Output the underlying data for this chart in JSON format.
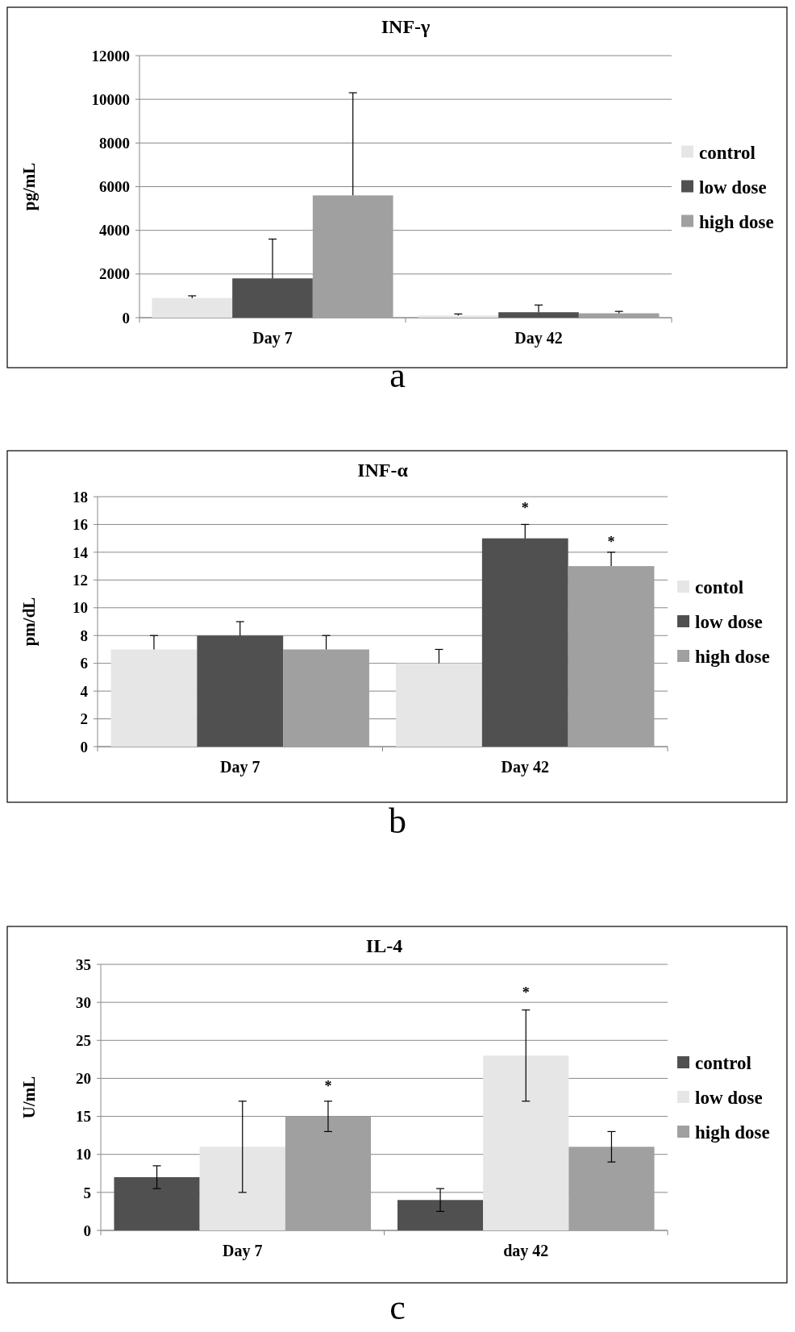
{
  "chart_data": [
    {
      "type": "bar",
      "title": "INF-γ",
      "ylabel": "pg/mL",
      "categories": [
        "Day 7",
        "Day 42"
      ],
      "ylim": [
        0,
        12000
      ],
      "yticks": [
        0,
        2000,
        4000,
        6000,
        8000,
        10000,
        12000
      ],
      "grid": "y",
      "legend": "right",
      "annotations": [
        "a"
      ],
      "series": [
        {
          "name": "control",
          "color": "#e6e6e6",
          "values": [
            900,
            100
          ],
          "errors": [
            [
              900,
              1000
            ],
            [
              100,
              170
            ]
          ]
        },
        {
          "name": "low dose",
          "color": "#505050",
          "values": [
            1800,
            250
          ],
          "errors": [
            [
              1800,
              3600
            ],
            [
              250,
              580
            ]
          ]
        },
        {
          "name": "high dose",
          "color": "#a0a0a0",
          "values": [
            5600,
            200
          ],
          "errors": [
            [
              5600,
              10300
            ],
            [
              200,
              290
            ]
          ]
        }
      ]
    },
    {
      "type": "bar",
      "title": "INF-α",
      "ylabel": "pm/dL",
      "categories": [
        "Day 7",
        "Day 42"
      ],
      "ylim": [
        0,
        18
      ],
      "yticks": [
        0,
        2,
        4,
        6,
        8,
        10,
        12,
        14,
        16,
        18
      ],
      "grid": "y",
      "legend": "right",
      "annotations": [
        "b",
        "*",
        "*"
      ],
      "series": [
        {
          "name": "contol",
          "color": "#e6e6e6",
          "values": [
            7,
            6
          ],
          "errors": [
            [
              7,
              8
            ],
            [
              6,
              7
            ]
          ]
        },
        {
          "name": "low dose",
          "color": "#505050",
          "values": [
            8,
            15
          ],
          "errors": [
            [
              8,
              9
            ],
            [
              15,
              16
            ]
          ]
        },
        {
          "name": "high dose",
          "color": "#a0a0a0",
          "values": [
            7,
            13
          ],
          "errors": [
            [
              7,
              8
            ],
            [
              13,
              14
            ]
          ]
        }
      ]
    },
    {
      "type": "bar",
      "title": "IL-4",
      "ylabel": "U/mL",
      "categories": [
        "Day 7",
        "day 42"
      ],
      "ylim": [
        0,
        35
      ],
      "yticks": [
        0,
        5,
        10,
        15,
        20,
        25,
        30,
        35
      ],
      "grid": "y",
      "legend": "right",
      "annotations": [
        "c",
        "*",
        "*"
      ],
      "series": [
        {
          "name": "control",
          "color": "#505050",
          "values": [
            7,
            4
          ],
          "errors": [
            1.5,
            1.5
          ]
        },
        {
          "name": "low dose",
          "color": "#e6e6e6",
          "values": [
            11,
            23
          ],
          "errors": [
            6,
            6
          ]
        },
        {
          "name": "high dose",
          "color": "#a0a0a0",
          "values": [
            15,
            11
          ],
          "errors": [
            2,
            2
          ]
        }
      ]
    }
  ]
}
